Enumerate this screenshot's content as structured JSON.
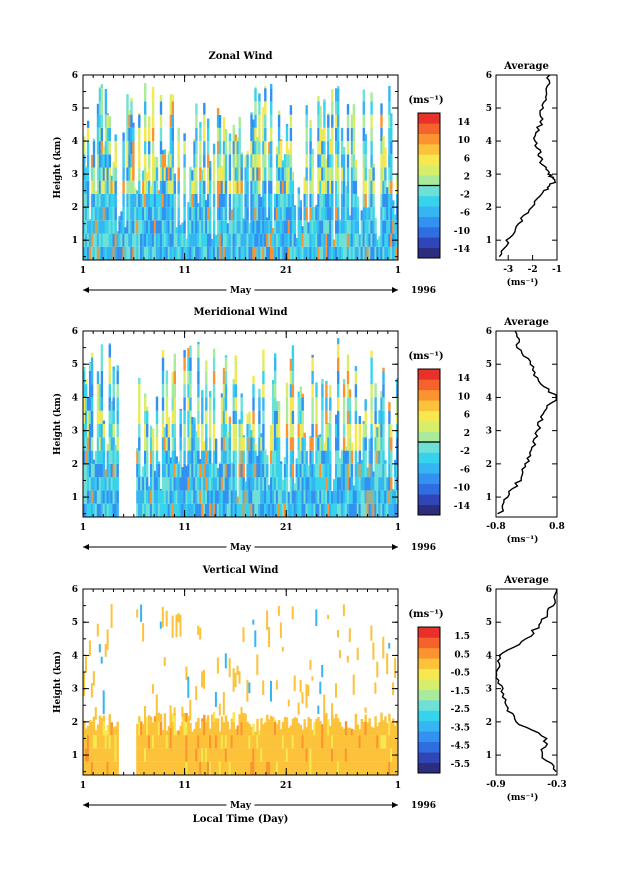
{
  "colorbar_colors": [
    "#2b2d7e",
    "#2f46b8",
    "#2f6ee0",
    "#3391f0",
    "#35b6f2",
    "#37d3ec",
    "#6fe0d6",
    "#a9ea9b",
    "#d8ee6a",
    "#f6e84e",
    "#fcc23a",
    "#fb9330",
    "#f6622b",
    "#e8312a"
  ],
  "chart_data": [
    {
      "type": "heatmap",
      "title": "Zonal Wind",
      "ylabel": "Height (km)",
      "y_ticks": [
        "1",
        "2",
        "3",
        "4",
        "5",
        "6"
      ],
      "ylim": [
        0.4,
        6
      ],
      "x_ticks": [
        "1",
        "11",
        "21",
        "1"
      ],
      "x_month": "May",
      "year": "1996",
      "colorbar_unit": "(ms⁻¹)",
      "colorbar_ticks": [
        "14",
        "10",
        "6",
        "2",
        "-2",
        "-6",
        "-10",
        "-14"
      ],
      "colorbar_range": [
        -16,
        16
      ],
      "average": {
        "title": "Average",
        "xlabel": "(ms⁻¹)",
        "x_ticks": [
          "-3",
          "-2",
          "-1"
        ],
        "xlim": [
          -3.5,
          -1
        ],
        "heights": [
          0.5,
          1.0,
          1.5,
          2.0,
          2.5,
          2.8,
          3.0,
          3.3,
          3.6,
          4.0,
          4.5,
          5.0,
          5.5,
          6.0
        ],
        "values": [
          -3.3,
          -3.0,
          -2.6,
          -2.1,
          -1.5,
          -1.1,
          -1.3,
          -1.6,
          -1.7,
          -1.9,
          -1.7,
          -1.6,
          -1.4,
          -1.3
        ]
      }
    },
    {
      "type": "heatmap",
      "title": "Meridional Wind",
      "ylabel": "Height (km)",
      "y_ticks": [
        "1",
        "2",
        "3",
        "4",
        "5",
        "6"
      ],
      "ylim": [
        0.4,
        6
      ],
      "x_ticks": [
        "1",
        "11",
        "21",
        "1"
      ],
      "x_month": "May",
      "year": "1996",
      "colorbar_unit": "(ms⁻¹)",
      "colorbar_ticks": [
        "14",
        "10",
        "6",
        "2",
        "-2",
        "-6",
        "-10",
        "-14"
      ],
      "colorbar_range": [
        -16,
        16
      ],
      "average": {
        "title": "Average",
        "xlabel": "(ms⁻¹)",
        "x_ticks": [
          "-0.8",
          "0.8"
        ],
        "xlim": [
          -0.8,
          0.8
        ],
        "heights": [
          0.5,
          1.0,
          1.5,
          2.0,
          2.5,
          3.0,
          3.5,
          4.0,
          4.5,
          5.0,
          5.5,
          6.0
        ],
        "values": [
          -0.7,
          -0.5,
          -0.2,
          0.0,
          0.2,
          0.3,
          0.4,
          0.8,
          0.3,
          0.1,
          -0.2,
          -0.3
        ]
      }
    },
    {
      "type": "heatmap",
      "title": "Vertical Wind",
      "ylabel": "Height (km)",
      "xlabel": "Local Time (Day)",
      "y_ticks": [
        "1",
        "2",
        "3",
        "4",
        "5",
        "6"
      ],
      "ylim": [
        0.4,
        6
      ],
      "x_ticks": [
        "1",
        "11",
        "21",
        "1"
      ],
      "x_month": "May",
      "year": "1996",
      "colorbar_unit": "(ms⁻¹)",
      "colorbar_ticks": [
        "1.5",
        "0.5",
        "-0.5",
        "-1.5",
        "-2.5",
        "-3.5",
        "-4.5",
        "-5.5"
      ],
      "colorbar_range": [
        -6,
        2
      ],
      "average": {
        "title": "Average",
        "xlabel": "(ms⁻¹)",
        "x_ticks": [
          "-0.9",
          "-0.3"
        ],
        "xlim": [
          -0.9,
          -0.3
        ],
        "heights": [
          0.5,
          1.0,
          1.5,
          2.0,
          2.5,
          3.0,
          3.5,
          4.0,
          4.5,
          5.0,
          5.5,
          6.0
        ],
        "values": [
          -0.3,
          -0.45,
          -0.4,
          -0.7,
          -0.8,
          -0.85,
          -0.9,
          -0.85,
          -0.6,
          -0.45,
          -0.35,
          -0.3
        ]
      }
    }
  ]
}
